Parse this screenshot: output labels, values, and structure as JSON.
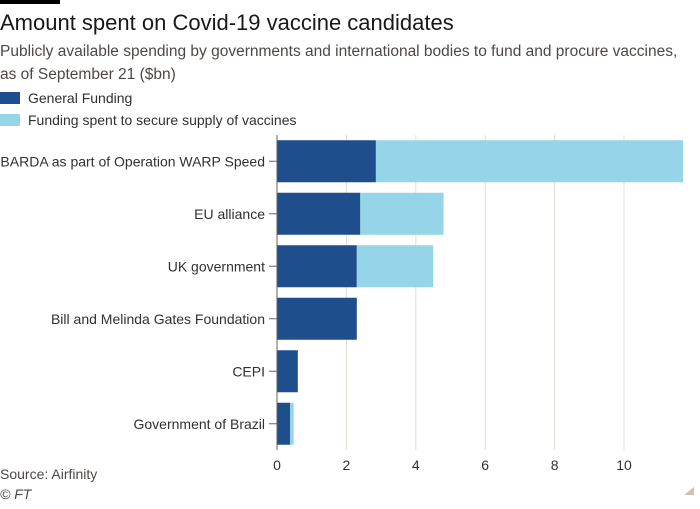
{
  "title": "Amount spent on Covid-19 vaccine candidates",
  "subtitle": "Publicly available spending by governments and international bodies to fund and procure vaccines, as of September 21 ($bn)",
  "source": "Source: Airfinity",
  "credit": "© FT",
  "colors": {
    "general": "#1f4e8c",
    "supply": "#96d4e8",
    "grid": "#e6ddd3",
    "text": "#33302e"
  },
  "chart_data": {
    "type": "bar",
    "orientation": "horizontal",
    "stacked": true,
    "title": "Amount spent on Covid-19 vaccine candidates",
    "subtitle": "Publicly available spending by governments and international bodies to fund and procure vaccines, as of September 21 ($bn)",
    "categories": [
      "BARDA as part of Operation WARP Speed",
      "EU alliance",
      "UK government",
      "Bill and Melinda Gates Foundation",
      "CEPI",
      "Government of Brazil"
    ],
    "series": [
      {
        "name": "General Funding",
        "values": [
          2.85,
          2.4,
          2.3,
          2.3,
          0.6,
          0.38
        ]
      },
      {
        "name": "Funding spent to secure supply of vaccines",
        "values": [
          8.85,
          2.4,
          2.2,
          0,
          0,
          0.1
        ]
      }
    ],
    "xlim": [
      0,
      11.7
    ],
    "xticks": [
      0,
      2,
      4,
      6,
      8,
      10
    ],
    "grid": true,
    "legend_position": "top-left"
  }
}
